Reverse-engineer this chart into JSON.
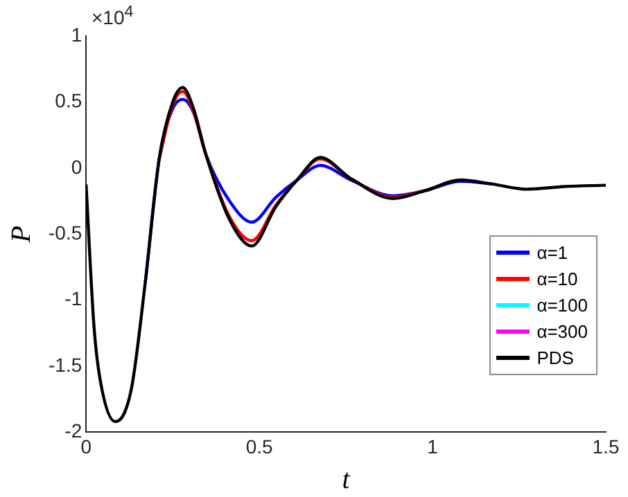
{
  "chart_data": {
    "type": "line",
    "xlabel": "t",
    "ylabel": "P",
    "annotations": [
      "×10$^{4}$"
    ],
    "x": [
      0,
      0.023,
      0.043,
      0.084,
      0.13,
      0.171,
      0.211,
      0.25,
      0.279,
      0.31,
      0.346,
      0.414,
      0.478,
      0.548,
      0.609,
      0.676,
      0.764,
      0.886,
      0.98,
      1.081,
      1.17,
      1.27,
      1.38,
      1.5
    ],
    "series": [
      {
        "name": "α=1",
        "color": "#0000ff",
        "values": [
          null,
          null,
          null,
          null,
          null,
          -0.86,
          0.07,
          0.45,
          0.52,
          0.42,
          0.1,
          -0.25,
          -0.41,
          -0.22,
          -0.09,
          0.02,
          -0.09,
          -0.21,
          -0.17,
          -0.1,
          -0.12,
          null,
          null,
          null
        ]
      },
      {
        "name": "α=10",
        "color": "#ff0000",
        "values": [
          null,
          null,
          null,
          null,
          null,
          null,
          0.07,
          0.48,
          0.58,
          0.43,
          0.1,
          -0.37,
          -0.55,
          -0.28,
          -0.09,
          0.07,
          -0.08,
          -0.22,
          -0.17,
          null,
          null,
          null,
          null,
          null
        ]
      },
      {
        "name": "α=100",
        "color": "#00ffff",
        "values": [
          null,
          null,
          null,
          null,
          null,
          null,
          null,
          null,
          null,
          null,
          null,
          null,
          null,
          null,
          null,
          null,
          null,
          null,
          null,
          null,
          null,
          null,
          null,
          null
        ]
      },
      {
        "name": "α=300",
        "color": "#ff00ff",
        "values": [
          null,
          null,
          null,
          null,
          null,
          null,
          null,
          null,
          null,
          null,
          null,
          null,
          null,
          null,
          null,
          null,
          null,
          null,
          null,
          null,
          null,
          null,
          null,
          null
        ]
      },
      {
        "name": "PDS",
        "color": "#000000",
        "values": [
          -0.13,
          -1.21,
          -1.64,
          -1.92,
          -1.68,
          -0.86,
          0.07,
          0.5,
          0.61,
          0.45,
          0.1,
          -0.39,
          -0.59,
          -0.29,
          -0.09,
          0.08,
          -0.08,
          -0.23,
          -0.17,
          -0.09,
          -0.12,
          -0.16,
          -0.14,
          -0.13
        ]
      }
    ],
    "xlim": [
      0,
      1.5
    ],
    "xticks": [
      0,
      0.5,
      1,
      1.5
    ],
    "ylim": [
      -2,
      1
    ],
    "yticks": [
      -2,
      -1.5,
      -1,
      -0.5,
      0,
      0.5,
      1
    ],
    "grid": false,
    "legend": "right",
    "marker": "none",
    "line_style": "solid"
  }
}
